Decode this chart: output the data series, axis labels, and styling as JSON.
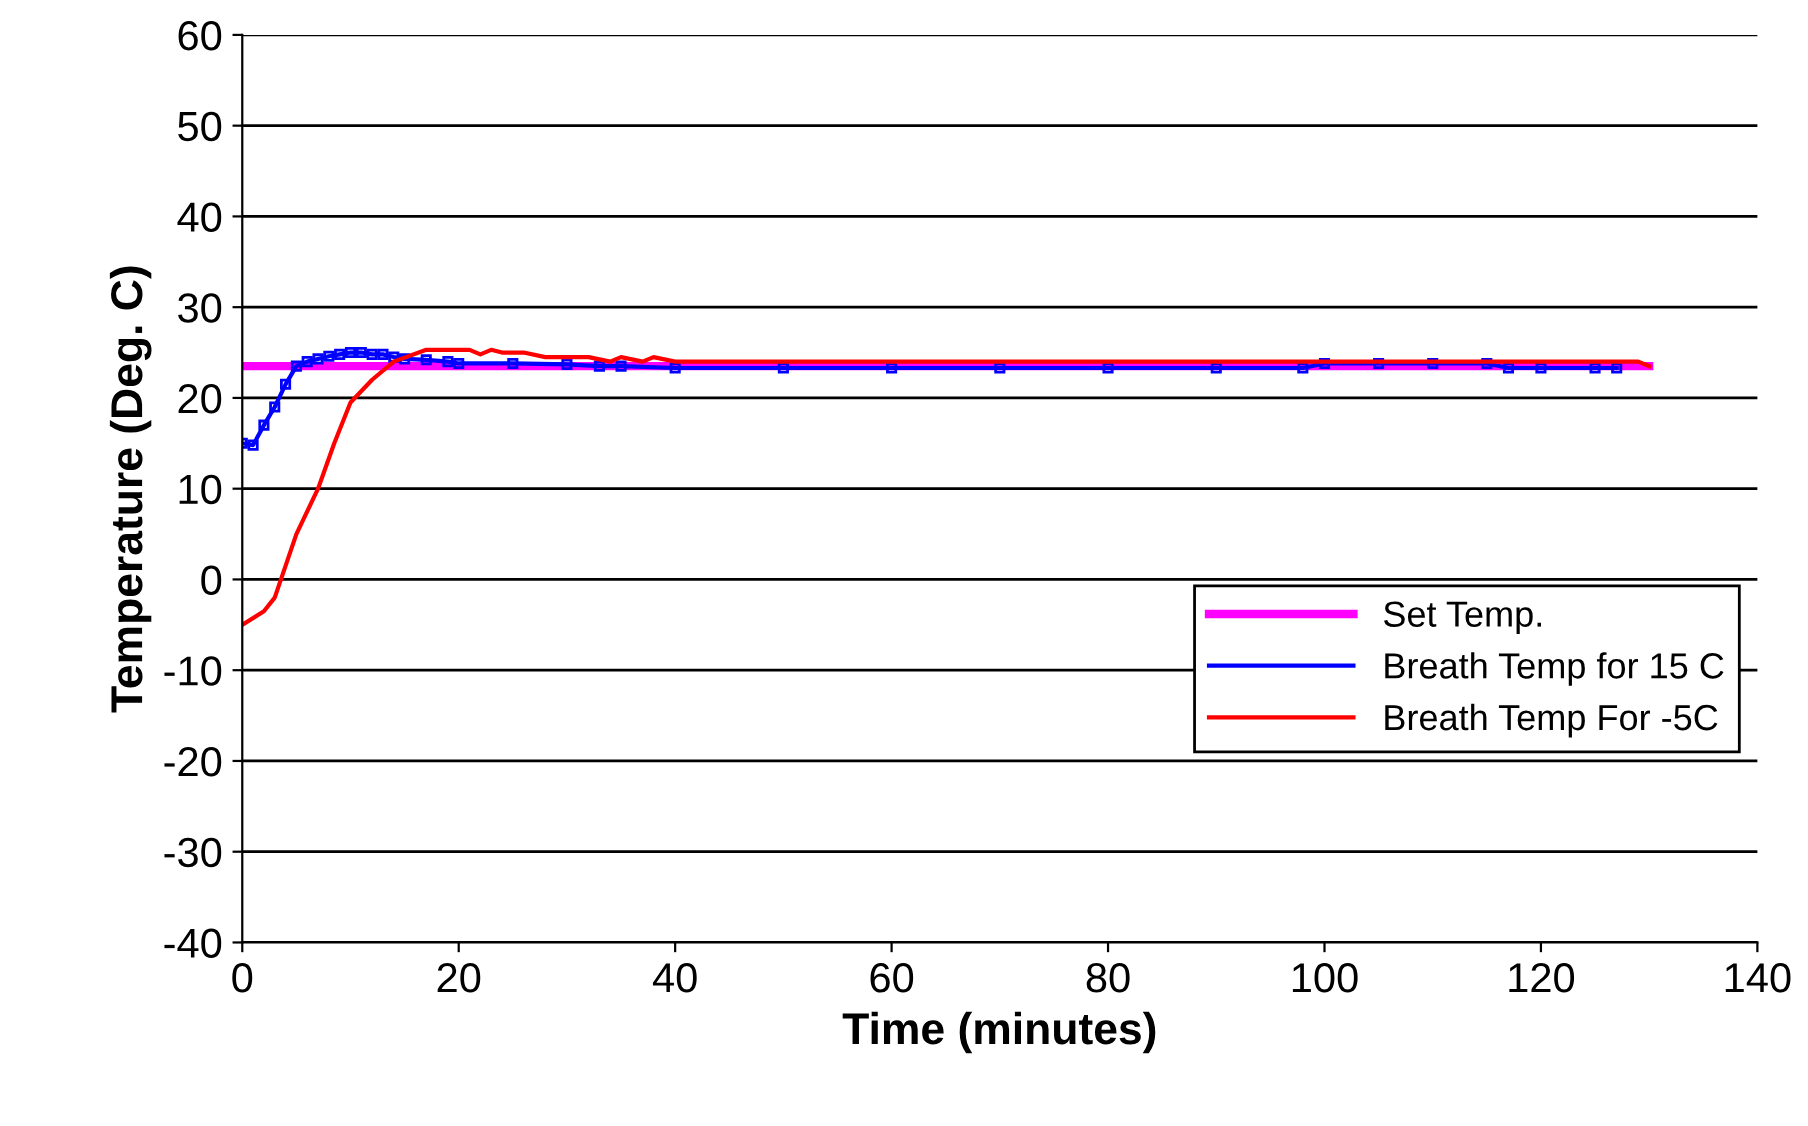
{
  "chart_data": {
    "type": "line",
    "xlabel": "Time (minutes)",
    "ylabel": "Temperature (Deg. C)",
    "xlim": [
      0,
      140
    ],
    "xticks": [
      0,
      20,
      40,
      60,
      80,
      100,
      120,
      140
    ],
    "ylim": [
      -40,
      60
    ],
    "yticks": [
      -40,
      -30,
      -20,
      -10,
      0,
      10,
      20,
      30,
      40,
      50,
      60
    ],
    "grid": "y",
    "legend": "bottom right",
    "series": [
      {
        "name": "Set Temp.",
        "color": "#ff00ff",
        "marker": "none",
        "x": [
          0,
          130
        ],
        "values": [
          23.5,
          23.5
        ]
      },
      {
        "name": "Breath Temp for 15 C",
        "color": "#0000ff",
        "marker": "square",
        "x": [
          0,
          1,
          2,
          3,
          4,
          5,
          6,
          7,
          8,
          9,
          10,
          11,
          12,
          13,
          14,
          15,
          17,
          19,
          20,
          25,
          30,
          33,
          35,
          40,
          50,
          60,
          70,
          80,
          90,
          98,
          100,
          105,
          110,
          115,
          117,
          120,
          125,
          127
        ],
        "values": [
          15,
          14.8,
          17,
          19,
          21.5,
          23.5,
          24,
          24.3,
          24.6,
          24.8,
          25,
          25,
          24.8,
          24.8,
          24.5,
          24.3,
          24.2,
          24,
          23.8,
          23.8,
          23.7,
          23.5,
          23.5,
          23.3,
          23.3,
          23.3,
          23.3,
          23.3,
          23.3,
          23.3,
          23.8,
          23.8,
          23.8,
          23.8,
          23.3,
          23.3,
          23.3,
          23.3
        ]
      },
      {
        "name": "Breath Temp For -5C",
        "color": "#ff0000",
        "marker": "none",
        "x": [
          0,
          2,
          3,
          5,
          7,
          8.5,
          10,
          12,
          14,
          17,
          21,
          22,
          23,
          24,
          26,
          28,
          32,
          34,
          35,
          37,
          38,
          40,
          60,
          80,
          100,
          120,
          129,
          130
        ],
        "values": [
          -5,
          -3.5,
          -2,
          5,
          10,
          15,
          19.5,
          22,
          24,
          25.3,
          25.3,
          24.8,
          25.3,
          25,
          25,
          24.5,
          24.5,
          24,
          24.5,
          24,
          24.5,
          24,
          24,
          24,
          24,
          24,
          24,
          23.5
        ]
      }
    ]
  }
}
